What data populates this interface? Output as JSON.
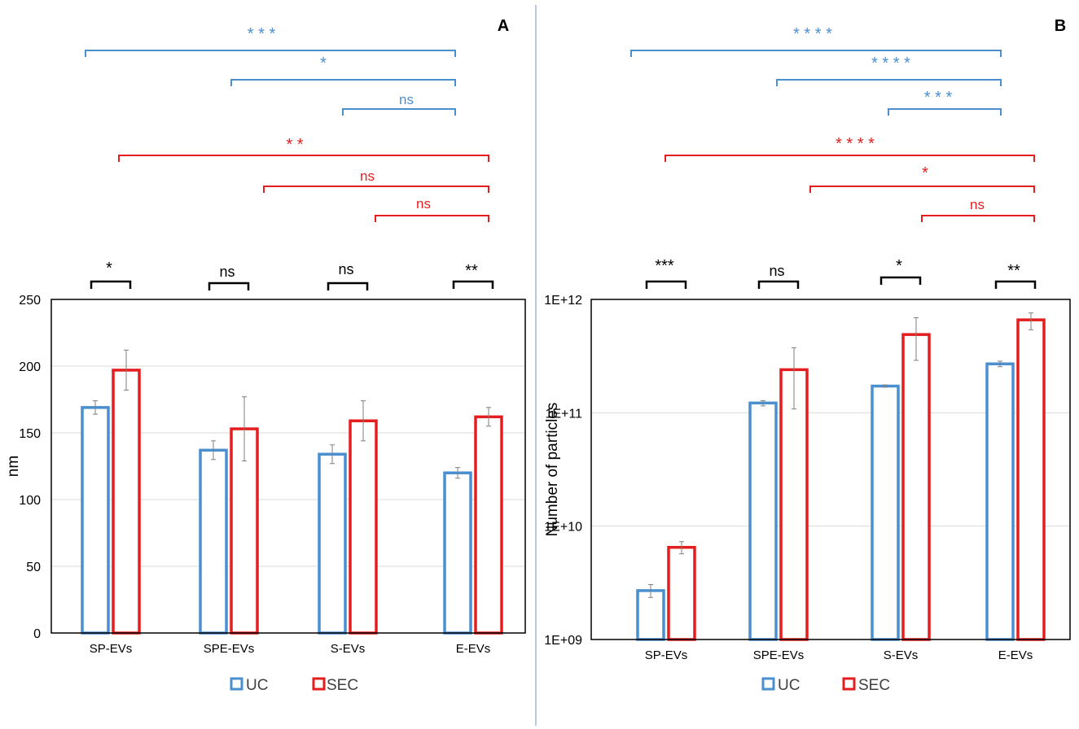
{
  "colors": {
    "uc": "#4a8fd0",
    "sec": "#e41e1e",
    "pair": "#000000",
    "grid": "#d9d9d9",
    "axis": "#000000",
    "errbar": "#7f7f7f",
    "divider": "#b7c9dc"
  },
  "chart_data": [
    {
      "panel": "A",
      "type": "bar",
      "scale": "linear",
      "ylabel": "nm",
      "ylim": [
        0,
        250
      ],
      "yticks": [
        0,
        50,
        100,
        150,
        200,
        250
      ],
      "ytick_labels": [
        "0",
        "50",
        "100",
        "150",
        "200",
        "250"
      ],
      "grid": true,
      "categories": [
        "SP-EVs",
        "SPE-EVs",
        "S-EVs",
        "E-EVs"
      ],
      "series": [
        {
          "name": "UC",
          "key": "uc",
          "values": [
            169,
            137,
            134,
            120
          ],
          "errors": [
            5,
            7,
            7,
            4
          ]
        },
        {
          "name": "SEC",
          "key": "sec",
          "values": [
            197,
            153,
            159,
            162
          ],
          "errors": [
            15,
            24,
            15,
            7
          ]
        }
      ],
      "pair_sig": [
        "*",
        "ns",
        "ns",
        "**"
      ],
      "comparisons": [
        {
          "series": "uc",
          "from": 0,
          "to": 3,
          "label": "* * *"
        },
        {
          "series": "uc",
          "from": 1,
          "to": 3,
          "label": "*"
        },
        {
          "series": "uc",
          "from": 2,
          "to": 3,
          "label": "ns"
        },
        {
          "series": "sec",
          "from": 0,
          "to": 3,
          "label": "* *"
        },
        {
          "series": "sec",
          "from": 1,
          "to": 3,
          "label": "ns"
        },
        {
          "series": "sec",
          "from": 2,
          "to": 3,
          "label": "ns"
        }
      ],
      "legend": [
        "UC",
        "SEC"
      ]
    },
    {
      "panel": "B",
      "type": "bar",
      "scale": "log",
      "ylabel": "Number of particles",
      "ylim": [
        1000000000.0,
        1000000000000.0
      ],
      "yticks": [
        1000000000.0,
        10000000000.0,
        100000000000.0,
        1000000000000.0
      ],
      "ytick_labels": [
        "1E+09",
        "1E+10",
        "1E+11",
        "1E+12"
      ],
      "grid": true,
      "categories": [
        "SP-EVs",
        "SPE-EVs",
        "S-EVs",
        "E-EVs"
      ],
      "series": [
        {
          "name": "UC",
          "key": "uc",
          "values": [
            2700000000.0,
            122000000000.0,
            172000000000.0,
            270000000000.0
          ],
          "err_low": [
            2350000000.0,
            115000000000.0,
            168000000000.0,
            255000000000.0
          ],
          "err_high": [
            3050000000.0,
            128000000000.0,
            176000000000.0,
            285000000000.0
          ]
        },
        {
          "name": "SEC",
          "key": "sec",
          "values": [
            6500000000.0,
            240000000000.0,
            490000000000.0,
            660000000000.0
          ],
          "err_low": [
            5700000000.0,
            108000000000.0,
            290000000000.0,
            540000000000.0
          ],
          "err_high": [
            7300000000.0,
            375000000000.0,
            690000000000.0,
            760000000000.0
          ]
        }
      ],
      "pair_sig": [
        "***",
        "ns",
        "*",
        "**"
      ],
      "comparisons": [
        {
          "series": "uc",
          "from": 0,
          "to": 3,
          "label": "* * * *"
        },
        {
          "series": "uc",
          "from": 1,
          "to": 3,
          "label": "* * * *"
        },
        {
          "series": "uc",
          "from": 2,
          "to": 3,
          "label": "* * *"
        },
        {
          "series": "sec",
          "from": 0,
          "to": 3,
          "label": "* * * *"
        },
        {
          "series": "sec",
          "from": 1,
          "to": 3,
          "label": "*"
        },
        {
          "series": "sec",
          "from": 2,
          "to": 3,
          "label": "ns"
        }
      ],
      "legend": [
        "UC",
        "SEC"
      ]
    }
  ]
}
